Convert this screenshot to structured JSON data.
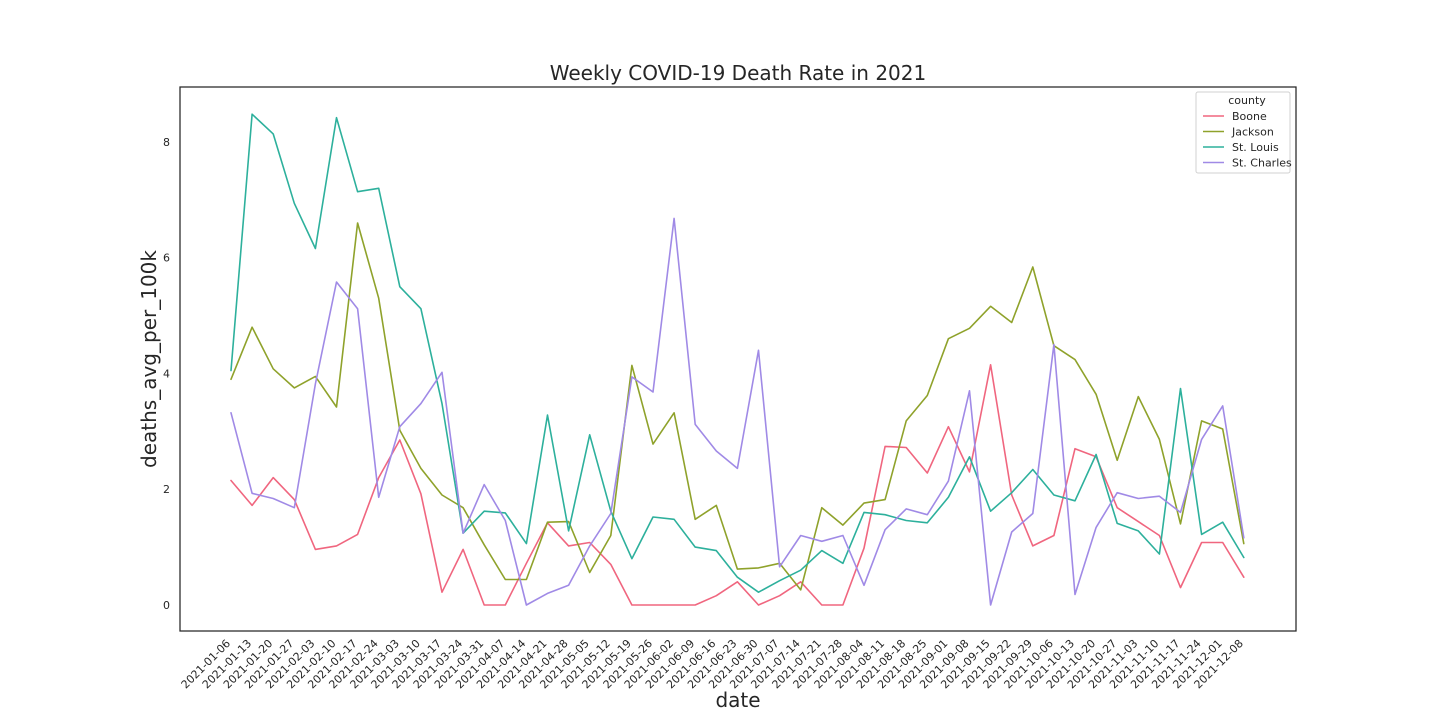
{
  "chart_data": {
    "type": "line",
    "title": "Weekly COVID-19 Death Rate in 2021",
    "xlabel": "date",
    "ylabel": "deaths_avg_per_100k",
    "ylim": [
      -0.45,
      8.95
    ],
    "yticks": [
      0,
      2,
      4,
      6,
      8
    ],
    "grid": false,
    "legend": {
      "title": "county",
      "placement": "top-right"
    },
    "x": [
      "2021-01-06",
      "2021-01-13",
      "2021-01-20",
      "2021-01-27",
      "2021-02-03",
      "2021-02-10",
      "2021-02-17",
      "2021-02-24",
      "2021-03-03",
      "2021-03-10",
      "2021-03-17",
      "2021-03-24",
      "2021-03-31",
      "2021-04-07",
      "2021-04-14",
      "2021-04-21",
      "2021-04-28",
      "2021-05-05",
      "2021-05-12",
      "2021-05-19",
      "2021-05-26",
      "2021-06-02",
      "2021-06-09",
      "2021-06-16",
      "2021-06-23",
      "2021-06-30",
      "2021-07-07",
      "2021-07-14",
      "2021-07-21",
      "2021-07-28",
      "2021-08-04",
      "2021-08-11",
      "2021-08-18",
      "2021-08-25",
      "2021-09-01",
      "2021-09-08",
      "2021-09-15",
      "2021-09-22",
      "2021-09-29",
      "2021-10-06",
      "2021-10-13",
      "2021-10-20",
      "2021-10-27",
      "2021-11-03",
      "2021-11-10",
      "2021-11-17",
      "2021-11-24",
      "2021-12-01",
      "2021-12-08"
    ],
    "series": [
      {
        "name": "Boone",
        "color": "#f0667f",
        "values": [
          2.15,
          1.72,
          2.2,
          1.82,
          0.96,
          1.02,
          1.22,
          2.2,
          2.85,
          1.92,
          0.22,
          0.96,
          0.0,
          0.0,
          0.72,
          1.42,
          1.02,
          1.08,
          0.7,
          0.0,
          0.0,
          0.0,
          0.0,
          0.16,
          0.4,
          0.0,
          0.16,
          0.4,
          0.0,
          0.0,
          0.98,
          2.74,
          2.72,
          2.28,
          3.08,
          2.3,
          4.15,
          1.9,
          1.02,
          1.2,
          2.7,
          2.56,
          1.68,
          1.44,
          1.2,
          0.3,
          1.08,
          1.08,
          0.48
        ]
      },
      {
        "name": "Jackson",
        "color": "#8fa22b",
        "values": [
          3.9,
          4.8,
          4.08,
          3.75,
          3.95,
          3.42,
          6.6,
          5.3,
          3.02,
          2.36,
          1.9,
          1.68,
          1.04,
          0.44,
          0.44,
          1.43,
          1.44,
          0.56,
          1.2,
          4.14,
          2.78,
          3.32,
          1.48,
          1.72,
          0.62,
          0.64,
          0.72,
          0.26,
          1.68,
          1.38,
          1.76,
          1.82,
          3.18,
          3.62,
          4.6,
          4.78,
          5.16,
          4.88,
          5.84,
          4.48,
          4.24,
          3.64,
          2.5,
          3.6,
          2.86,
          1.4,
          3.18,
          3.04,
          1.06
        ]
      },
      {
        "name": "St. Louis",
        "color": "#2db09c",
        "values": [
          4.05,
          8.48,
          8.14,
          6.94,
          6.16,
          8.42,
          7.14,
          7.2,
          5.5,
          5.12,
          3.48,
          1.24,
          1.62,
          1.59,
          1.06,
          3.28,
          1.28,
          2.94,
          1.62,
          0.8,
          1.52,
          1.48,
          1.0,
          0.94,
          0.48,
          0.22,
          0.42,
          0.6,
          0.94,
          0.72,
          1.6,
          1.56,
          1.46,
          1.42,
          1.86,
          2.56,
          1.62,
          1.94,
          2.34,
          1.9,
          1.8,
          2.6,
          1.41,
          1.28,
          0.88,
          3.74,
          1.22,
          1.43,
          0.82
        ]
      },
      {
        "name": "St. Charles",
        "color": "#a08ae6",
        "values": [
          3.32,
          1.93,
          1.84,
          1.68,
          3.82,
          5.58,
          5.12,
          1.86,
          3.08,
          3.48,
          4.02,
          1.24,
          2.08,
          1.46,
          0.0,
          0.2,
          0.34,
          1.02,
          1.58,
          3.94,
          3.68,
          6.68,
          3.12,
          2.66,
          2.36,
          4.4,
          0.66,
          1.2,
          1.1,
          1.2,
          0.34,
          1.3,
          1.66,
          1.56,
          2.14,
          3.7,
          0.0,
          1.26,
          1.58,
          4.5,
          0.18,
          1.34,
          1.94,
          1.84,
          1.88,
          1.6,
          2.86,
          3.44,
          1.16
        ]
      }
    ]
  }
}
